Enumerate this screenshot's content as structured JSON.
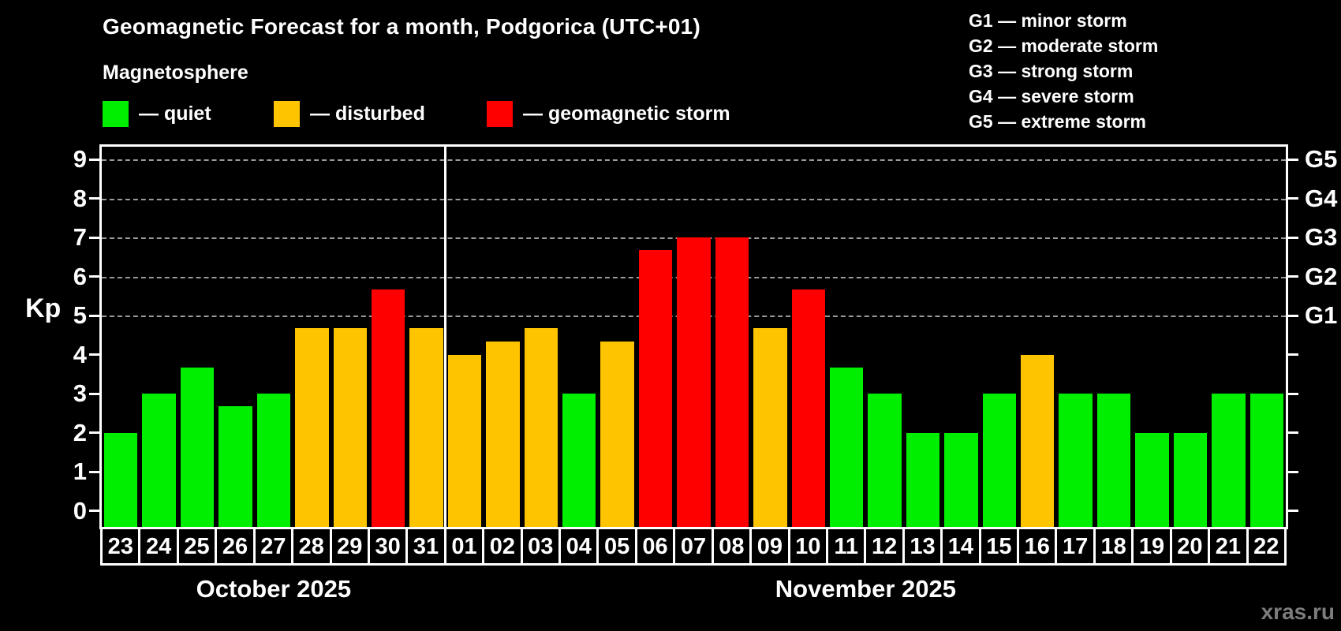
{
  "header": {
    "title": "Geomagnetic Forecast for a month, Podgorica (UTC+01)",
    "subtitle": "Magnetosphere",
    "legend": [
      {
        "status": "quiet",
        "label": "— quiet"
      },
      {
        "status": "disturbed",
        "label": "— disturbed"
      },
      {
        "status": "storm",
        "label": "— geomagnetic storm"
      }
    ],
    "g_scale": [
      "G1 — minor storm",
      "G2 — moderate storm",
      "G3 — strong storm",
      "G4 — severe storm",
      "G5 — extreme storm"
    ]
  },
  "colors": {
    "quiet": "#00ee00",
    "disturbed": "#ffc400",
    "storm": "#ff0000",
    "grid": "#9a9a9a",
    "axis": "#ffffff",
    "background": "#000000",
    "watermark": "#7d7d7d"
  },
  "chart_data": {
    "type": "bar",
    "title": "Geomagnetic Forecast for a month, Podgorica (UTC+01)",
    "ylabel": "Kp",
    "ylim": [
      0,
      9
    ],
    "yticks": [
      0,
      1,
      2,
      3,
      4,
      5,
      6,
      7,
      8,
      9
    ],
    "gridlines_at": [
      5,
      6,
      7,
      8,
      9
    ],
    "grid": "dashed horizontal lines at G-storm levels only",
    "legend_position": "top-left",
    "right_axis_labels": [
      {
        "kp": 5,
        "label": "G1"
      },
      {
        "kp": 6,
        "label": "G2"
      },
      {
        "kp": 7,
        "label": "G3"
      },
      {
        "kp": 8,
        "label": "G4"
      },
      {
        "kp": 9,
        "label": "G5"
      }
    ],
    "categories": [
      "23",
      "24",
      "25",
      "26",
      "27",
      "28",
      "29",
      "30",
      "31",
      "01",
      "02",
      "03",
      "04",
      "05",
      "06",
      "07",
      "08",
      "09",
      "10",
      "11",
      "12",
      "13",
      "14",
      "15",
      "16",
      "17",
      "18",
      "19",
      "20",
      "21",
      "22"
    ],
    "values": [
      2,
      3,
      3.67,
      2.67,
      3,
      4.67,
      4.67,
      5.67,
      4.67,
      4,
      4.33,
      4.67,
      3,
      4.33,
      6.67,
      7,
      7,
      4.67,
      5.67,
      3.67,
      3,
      2,
      2,
      3,
      4,
      3,
      3,
      2,
      2,
      3,
      3
    ],
    "statuses": [
      "quiet",
      "quiet",
      "quiet",
      "quiet",
      "quiet",
      "disturbed",
      "disturbed",
      "storm",
      "disturbed",
      "disturbed",
      "disturbed",
      "disturbed",
      "quiet",
      "disturbed",
      "storm",
      "storm",
      "storm",
      "disturbed",
      "storm",
      "quiet",
      "quiet",
      "quiet",
      "quiet",
      "quiet",
      "disturbed",
      "quiet",
      "quiet",
      "quiet",
      "quiet",
      "quiet",
      "quiet"
    ],
    "months": [
      {
        "label": "October 2025",
        "days": 9
      },
      {
        "label": "November 2025",
        "days": 22
      }
    ]
  },
  "watermark": "xras.ru"
}
